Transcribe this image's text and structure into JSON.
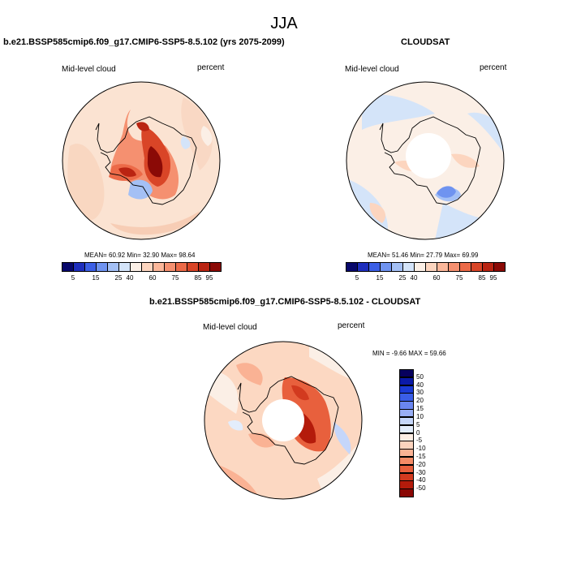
{
  "figure": {
    "title": "JJA"
  },
  "panels": [
    {
      "title": "b.e21.BSSP585cmip6.f09_g17.CMIP6-SSP5-8.5.102 (yrs 2075-2099)",
      "variable": "Mid-level cloud",
      "units": "percent",
      "stats": {
        "mean": "60.92",
        "min": "32.90",
        "max": "98.64"
      }
    },
    {
      "title": "CLOUDSAT",
      "variable": "Mid-level cloud",
      "units": "percent",
      "stats": {
        "mean": "51.46",
        "min": "27.79",
        "max": "69.99"
      }
    },
    {
      "title": "b.e21.BSSP585cmip6.f09_g17.CMIP6-SSP5-8.5.102 - CLOUDSAT",
      "variable": "Mid-level cloud",
      "units": "percent",
      "stats": {
        "min": "-9.66",
        "max": "59.66"
      }
    }
  ],
  "stat_labels": {
    "mean": "MEAN=",
    "min": "Min=",
    "max": "Max=",
    "min_upper": "MIN =",
    "max_upper": "MAX ="
  },
  "colorbar_abs": {
    "colors": [
      "#08086b",
      "#1e2ebd",
      "#3c5fe6",
      "#6f93f0",
      "#a4c0f5",
      "#d4e4f9",
      "#fbefe6",
      "#fcd5bf",
      "#fbb79a",
      "#f59070",
      "#ec6a48",
      "#d94527",
      "#ba2412",
      "#8b0a06"
    ],
    "labels": [
      "5",
      "15",
      "25",
      "40",
      "60",
      "75",
      "85",
      "95"
    ]
  },
  "colorbar_diff": {
    "colors": [
      "#07005e",
      "#0b1aa8",
      "#1b3bd6",
      "#3a5ee8",
      "#6a86f0",
      "#98aef5",
      "#c5d6fa",
      "#e3edfc",
      "#fdeee4",
      "#fcd3bd",
      "#fab294",
      "#f48b66",
      "#e8603d",
      "#d23a1f",
      "#b41b0b",
      "#8a0704"
    ],
    "labels": [
      "50",
      "40",
      "30",
      "20",
      "15",
      "10",
      "5",
      "0",
      "-5",
      "-10",
      "-15",
      "-20",
      "-30",
      "-40",
      "-50"
    ]
  }
}
